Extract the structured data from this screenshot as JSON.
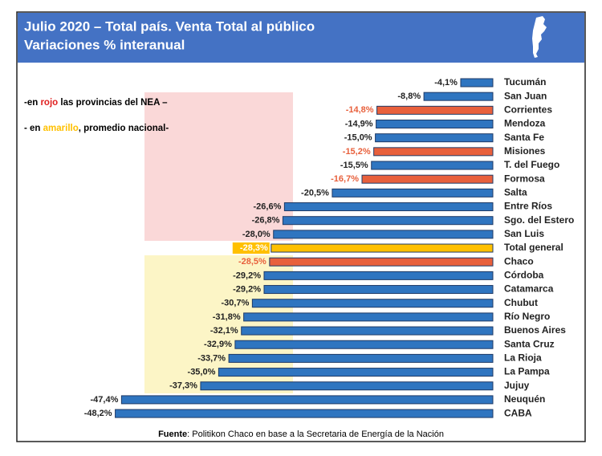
{
  "chart_data": {
    "type": "hbar",
    "title_lines": [
      "Julio 2020 – Total país. Venta Total al público",
      "Variaciones % interanual"
    ],
    "notes": [
      [
        "-en ",
        "rojo",
        " las provincias del NEA –"
      ],
      [
        "- en ",
        "amarillo",
        ", promedio nacional-"
      ]
    ],
    "source_label": "Fuente",
    "source_text": ": Politikon Chaco en base a la Secretaria de Energía de la Nación",
    "categories": [
      "Tucumán",
      "San Juan",
      "Corrientes",
      "Mendoza",
      "Santa Fe",
      "Misiones",
      "T. del Fuego",
      "Formosa",
      "Salta",
      "Entre Ríos",
      "Sgo. del Estero",
      "San Luis",
      "Total general",
      "Chaco",
      "Córdoba",
      "Catamarca",
      "Chubut",
      "Río Negro",
      "Buenos Aires",
      "Santa Cruz",
      "La Rioja",
      "La Pampa",
      "Jujuy",
      "Neuquén",
      "CABA"
    ],
    "values": [
      -4.1,
      -8.8,
      -14.8,
      -14.9,
      -15.0,
      -15.2,
      -15.5,
      -16.7,
      -20.5,
      -26.6,
      -26.8,
      -28.0,
      -28.3,
      -28.5,
      -29.2,
      -29.2,
      -30.7,
      -31.8,
      -32.1,
      -32.9,
      -33.7,
      -35.0,
      -37.3,
      -47.4,
      -48.2
    ],
    "value_labels": [
      "-4,1%",
      "-8,8%",
      "-14,8%",
      "-14,9%",
      "-15,0%",
      "-15,2%",
      "-15,5%",
      "-16,7%",
      "-20,5%",
      "-26,6%",
      "-26,8%",
      "-28,0%",
      "-28,3%",
      "-28,5%",
      "-29,2%",
      "-29,2%",
      "-30,7%",
      "-31,8%",
      "-32,1%",
      "-32,9%",
      "-33,7%",
      "-35,0%",
      "-37,3%",
      "-47,4%",
      "-48,2%"
    ],
    "color": "#2f75c0",
    "nea_color": "#e8603c",
    "average_color": "#ffc000",
    "colors": [
      "#2f75c0",
      "#2f75c0",
      "#e8603c",
      "#2f75c0",
      "#2f75c0",
      "#e8603c",
      "#2f75c0",
      "#e8603c",
      "#2f75c0",
      "#2f75c0",
      "#2f75c0",
      "#2f75c0",
      "#ffc000",
      "#e8603c",
      "#2f75c0",
      "#2f75c0",
      "#2f75c0",
      "#2f75c0",
      "#2f75c0",
      "#2f75c0",
      "#2f75c0",
      "#2f75c0",
      "#2f75c0",
      "#2f75c0",
      "#2f75c0"
    ],
    "xlim": [
      -50,
      0
    ]
  }
}
